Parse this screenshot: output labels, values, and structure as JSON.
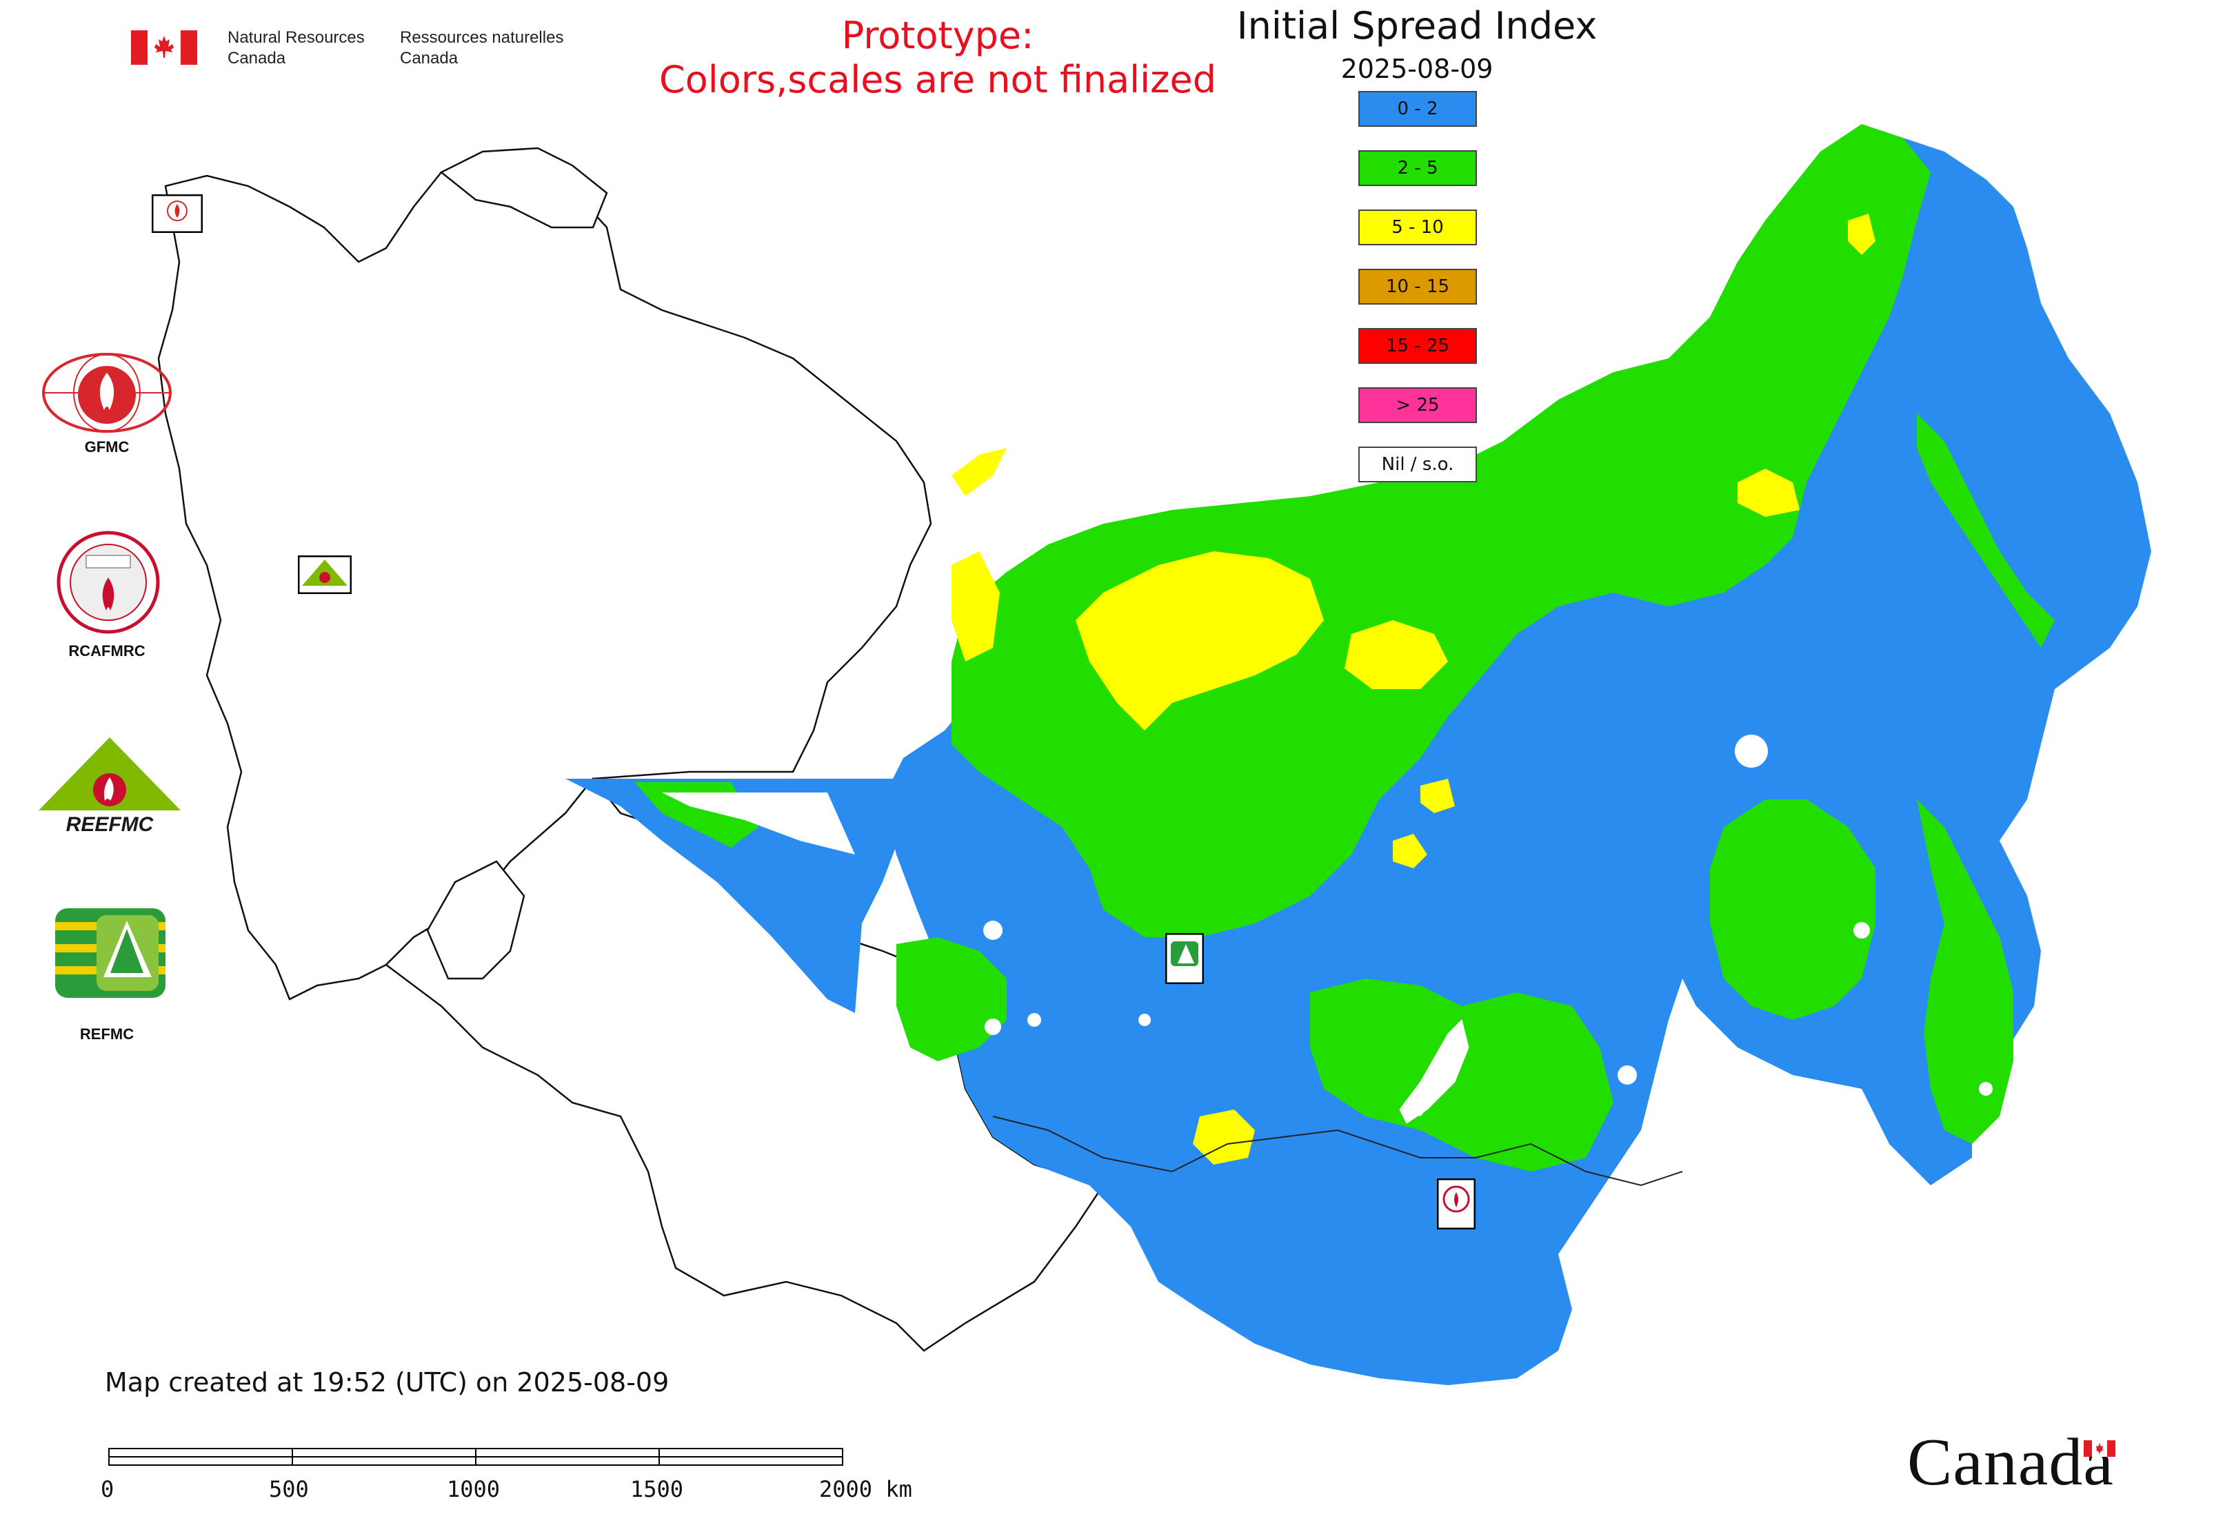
{
  "header": {
    "agency_en_line1": "Natural Resources",
    "agency_en_line2": "Canada",
    "agency_fr_line1": "Ressources naturelles",
    "agency_fr_line2": "Canada"
  },
  "notice": {
    "line1": "Prototype:",
    "line2": "Colors,scales are not finalized",
    "color": "#e8101e"
  },
  "map": {
    "title": "Initial Spread Index",
    "date": "2025-08-09",
    "created": "Map created at 19:52 (UTC) on 2025-08-09"
  },
  "legend": [
    {
      "label": "0 - 2",
      "color": "#2b8cf0"
    },
    {
      "label": "2 - 5",
      "color": "#22dd00"
    },
    {
      "label": "5 - 10",
      "color": "#ffff00"
    },
    {
      "label": "10 - 15",
      "color": "#dd9900"
    },
    {
      "label": "15 - 25",
      "color": "#ff0000"
    },
    {
      "label": "> 25",
      "color": "#ff3399"
    },
    {
      "label": "Nil / s.o.",
      "color": "#ffffff"
    }
  ],
  "organizations": {
    "gfmc": "GFMC",
    "rcafmrc": "RCAFMRC",
    "reefmc": "REEFMC",
    "refmc": "REFMC"
  },
  "scale_bar": {
    "ticks": [
      "0",
      "500",
      "1000",
      "1500",
      "2000 km"
    ]
  },
  "wordmark": "Canada"
}
